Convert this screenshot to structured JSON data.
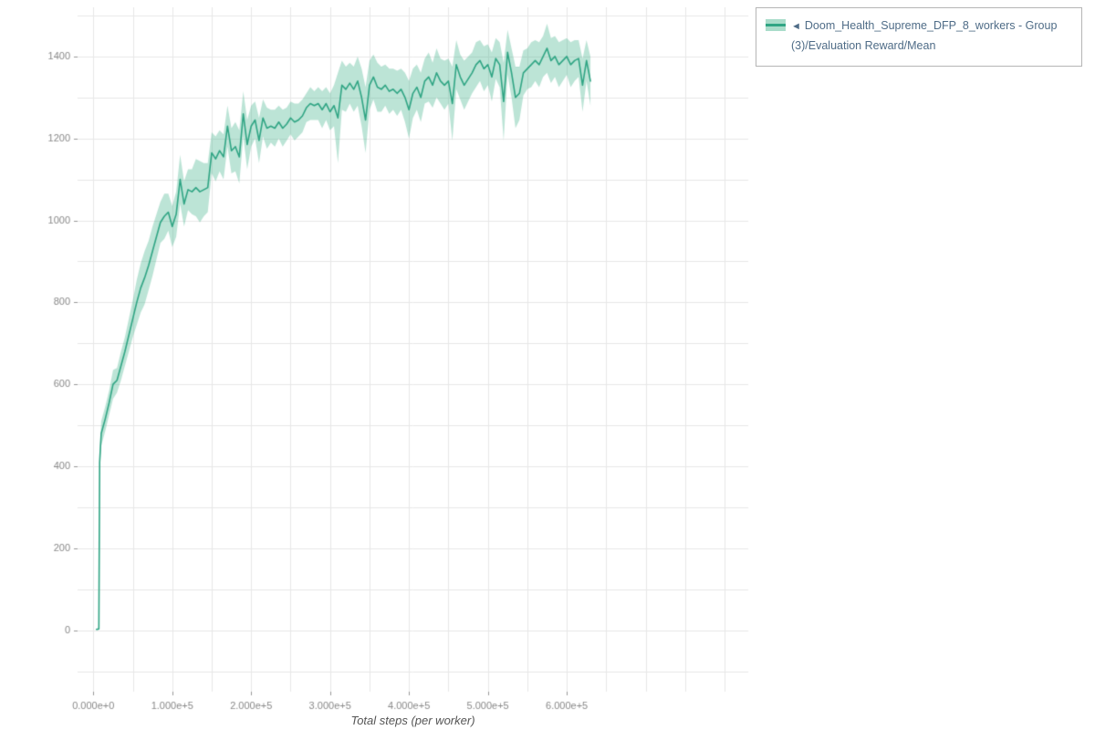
{
  "colors": {
    "line": "#30a584",
    "band": "rgba(64,178,138,0.35)",
    "grid": "#e8e8e8",
    "tick": "#999999",
    "tick_text": "#8a8a8a",
    "axis_label": "#555555",
    "legend_text": "#4f6c87",
    "legend_border": "#b5b5b5",
    "background": "#ffffff"
  },
  "legend": {
    "marker": "◄",
    "label": "Doom_Health_Supreme_DFP_8_workers - Group(3)/Evaluation Reward/Mean"
  },
  "x_axis": {
    "label": "Total steps (per worker)",
    "tick_values": [
      0,
      100000,
      200000,
      300000,
      400000,
      500000,
      600000
    ],
    "tick_labels": [
      "0.000e+0",
      "1.000e+5",
      "2.000e+5",
      "3.000e+5",
      "4.000e+5",
      "5.000e+5",
      "6.000e+5"
    ]
  },
  "y_axis": {
    "tick_values": [
      0,
      200,
      400,
      600,
      800,
      1000,
      1200,
      1400
    ],
    "tick_labels": [
      "0",
      "200",
      "400",
      "600",
      "800",
      "1000",
      "1200",
      "1400"
    ]
  },
  "chart_data": {
    "type": "line",
    "title": "",
    "xlabel": "Total steps (per worker)",
    "ylabel": "",
    "xlim": [
      -20000,
      830000
    ],
    "ylim": [
      -150,
      1520
    ],
    "grid": {
      "x_range": [
        0,
        800000
      ],
      "x_step": 50000,
      "y_range": [
        -100,
        1500
      ],
      "y_step": 100
    },
    "series": [
      {
        "name": "Doom_Health_Supreme_DFP_8_workers - Group(3)/Evaluation Reward/Mean",
        "has_band": true,
        "x": [
          4000,
          7000,
          8000,
          10000,
          15000,
          20000,
          25000,
          30000,
          35000,
          40000,
          45000,
          50000,
          55000,
          60000,
          65000,
          70000,
          75000,
          80000,
          85000,
          90000,
          95000,
          100000,
          105000,
          110000,
          115000,
          120000,
          125000,
          130000,
          135000,
          140000,
          145000,
          150000,
          155000,
          160000,
          165000,
          170000,
          175000,
          180000,
          185000,
          190000,
          195000,
          200000,
          205000,
          210000,
          215000,
          220000,
          225000,
          230000,
          235000,
          240000,
          245000,
          250000,
          255000,
          260000,
          265000,
          270000,
          275000,
          280000,
          285000,
          290000,
          295000,
          300000,
          305000,
          310000,
          315000,
          320000,
          325000,
          330000,
          335000,
          340000,
          345000,
          350000,
          355000,
          360000,
          365000,
          370000,
          375000,
          380000,
          385000,
          390000,
          395000,
          400000,
          405000,
          410000,
          415000,
          420000,
          425000,
          430000,
          435000,
          440000,
          445000,
          450000,
          455000,
          460000,
          465000,
          470000,
          475000,
          480000,
          485000,
          490000,
          495000,
          500000,
          505000,
          510000,
          515000,
          520000,
          525000,
          530000,
          535000,
          540000,
          545000,
          550000,
          555000,
          560000,
          565000,
          570000,
          575000,
          580000,
          585000,
          590000,
          595000,
          600000,
          605000,
          610000,
          615000,
          620000,
          625000,
          630000
        ],
        "mean": [
          2,
          3,
          410,
          480,
          515,
          555,
          600,
          610,
          645,
          680,
          720,
          760,
          800,
          835,
          860,
          890,
          925,
          960,
          995,
          1010,
          1020,
          985,
          1015,
          1100,
          1040,
          1075,
          1070,
          1080,
          1070,
          1075,
          1080,
          1165,
          1150,
          1170,
          1155,
          1230,
          1170,
          1180,
          1155,
          1260,
          1185,
          1230,
          1245,
          1195,
          1250,
          1225,
          1230,
          1225,
          1240,
          1225,
          1235,
          1250,
          1240,
          1245,
          1255,
          1275,
          1285,
          1280,
          1285,
          1270,
          1285,
          1265,
          1280,
          1250,
          1330,
          1320,
          1335,
          1320,
          1340,
          1300,
          1245,
          1330,
          1350,
          1325,
          1320,
          1330,
          1315,
          1320,
          1310,
          1320,
          1300,
          1270,
          1310,
          1325,
          1300,
          1340,
          1350,
          1330,
          1360,
          1340,
          1330,
          1340,
          1285,
          1380,
          1350,
          1330,
          1345,
          1360,
          1380,
          1390,
          1370,
          1380,
          1350,
          1395,
          1380,
          1290,
          1410,
          1360,
          1300,
          1310,
          1360,
          1370,
          1380,
          1390,
          1380,
          1400,
          1420,
          1390,
          1400,
          1380,
          1390,
          1400,
          1380,
          1390,
          1395,
          1330,
          1390,
          1340
        ],
        "band": [
          2,
          2,
          25,
          30,
          30,
          30,
          35,
          30,
          35,
          35,
          40,
          45,
          55,
          60,
          65,
          60,
          60,
          55,
          50,
          55,
          45,
          50,
          55,
          60,
          55,
          50,
          55,
          70,
          75,
          65,
          60,
          50,
          55,
          50,
          55,
          50,
          55,
          60,
          65,
          55,
          60,
          50,
          45,
          55,
          45,
          50,
          40,
          45,
          40,
          45,
          40,
          40,
          45,
          40,
          40,
          35,
          40,
          35,
          40,
          45,
          40,
          45,
          50,
          110,
          60,
          55,
          50,
          55,
          60,
          70,
          80,
          60,
          55,
          60,
          55,
          50,
          55,
          50,
          55,
          50,
          60,
          70,
          60,
          55,
          60,
          55,
          60,
          55,
          60,
          55,
          60,
          55,
          90,
          60,
          55,
          60,
          55,
          50,
          55,
          50,
          55,
          50,
          60,
          50,
          55,
          95,
          55,
          60,
          75,
          65,
          55,
          50,
          55,
          50,
          55,
          50,
          60,
          55,
          50,
          55,
          50,
          45,
          55,
          50,
          45,
          65,
          50,
          60
        ]
      }
    ]
  }
}
